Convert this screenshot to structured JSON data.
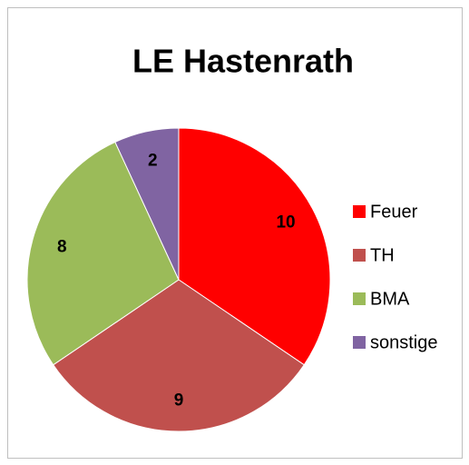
{
  "chart_data": {
    "type": "pie",
    "title": "LE Hastenrath",
    "categories": [
      "Feuer",
      "TH",
      "BMA",
      "sonstige"
    ],
    "values": [
      10,
      9,
      8,
      2
    ],
    "colors": [
      "#ff0000",
      "#c0504d",
      "#9bbb59",
      "#8064a2"
    ],
    "legend": "right"
  }
}
